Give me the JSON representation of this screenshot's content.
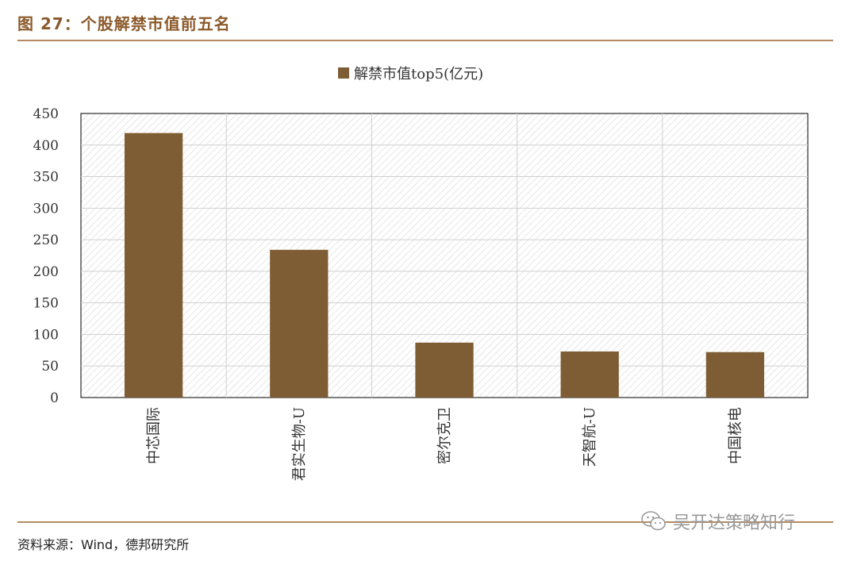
{
  "figure": {
    "title": "图 27：个股解禁市值前五名",
    "source": "资料来源：Wind，德邦研究所",
    "watermark": "吴开达策略知行",
    "watermark_icon": "wechat-icon"
  },
  "colors": {
    "bar": "#7f5d34",
    "accent": "#8b5a2b",
    "rule": "#b58a60"
  },
  "chart_data": {
    "type": "bar",
    "title": "",
    "categories": [
      "中芯国际",
      "君实生物-U",
      "密尔克卫",
      "天智航-U",
      "中国核电"
    ],
    "series": [
      {
        "name": "解禁市值top5(亿元)",
        "values": [
          419,
          234,
          87,
          73,
          72
        ]
      }
    ],
    "xlabel": "",
    "ylabel": "",
    "ylim": [
      0,
      450
    ],
    "yticks": [
      0,
      50,
      100,
      150,
      200,
      250,
      300,
      350,
      400,
      450
    ],
    "grid": true,
    "legend": "top-center"
  }
}
